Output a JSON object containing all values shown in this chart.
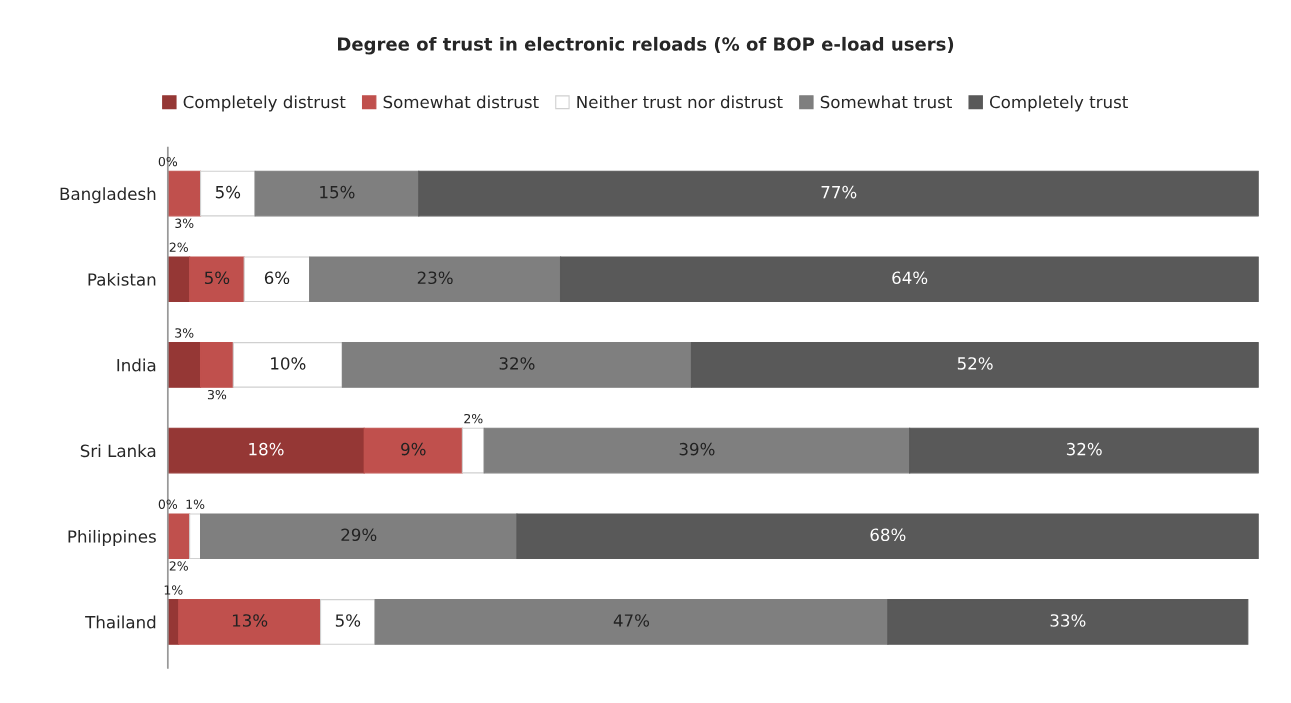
{
  "chart_data": {
    "type": "bar",
    "orientation": "horizontal",
    "stacked": true,
    "title": "Degree of trust in electronic reloads (% of BOP e-load users)",
    "categories": [
      "Bangladesh",
      "Pakistan",
      "India",
      "Sri Lanka",
      "Philippines",
      "Thailand"
    ],
    "series": [
      {
        "name": "Completely distrust",
        "color": "#953735",
        "values": [
          0,
          2,
          3,
          18,
          0,
          1
        ],
        "value_labels": [
          "0%",
          "2%",
          "3%",
          "18%",
          "0%",
          "1%"
        ]
      },
      {
        "name": "Somewhat distrust",
        "color": "#c0504d",
        "values": [
          3,
          5,
          3,
          9,
          2,
          13
        ],
        "value_labels": [
          "3%",
          "5%",
          "3%",
          "9%",
          "2%",
          "13%"
        ]
      },
      {
        "name": "Neither trust nor distrust",
        "color": "#ffffff",
        "values": [
          5,
          6,
          10,
          2,
          1,
          5
        ],
        "value_labels": [
          "5%",
          "6%",
          "10%",
          "2%",
          "1%",
          "5%"
        ]
      },
      {
        "name": "Somewhat trust",
        "color": "#7f7f7f",
        "values": [
          15,
          23,
          32,
          39,
          29,
          47
        ],
        "value_labels": [
          "15%",
          "23%",
          "32%",
          "39%",
          "29%",
          "47%"
        ]
      },
      {
        "name": "Completely trust",
        "color": "#595959",
        "values": [
          77,
          64,
          52,
          32,
          68,
          33
        ],
        "value_labels": [
          "77%",
          "64%",
          "52%",
          "32%",
          "68%",
          "33%"
        ]
      }
    ],
    "legend": "top",
    "grid": false,
    "tick_labels": "y"
  }
}
